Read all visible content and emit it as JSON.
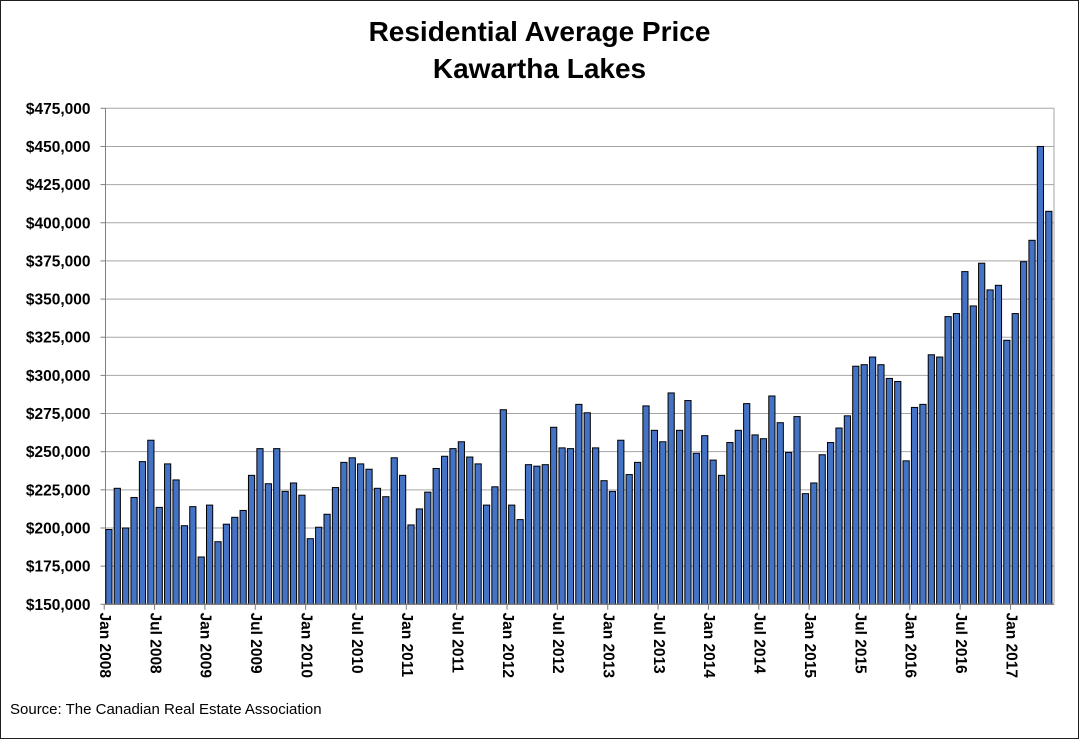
{
  "title": {
    "line1": "Residential Average Price",
    "line2": "Kawartha Lakes"
  },
  "source_note": "Source: The Canadian Real Estate Association",
  "chart_data": {
    "type": "bar",
    "title": "Residential Average Price - Kawartha Lakes",
    "xlabel": "",
    "ylabel": "",
    "unit": "CAD",
    "x_start": "Jan 2008",
    "x_end": "May 2017",
    "ylim": [
      150000,
      475000
    ],
    "ytick_step": 25000,
    "grid": true,
    "legend": "none",
    "bar_color": "#4472C4",
    "bar_edge_color": "#000000",
    "gridline_color": "#A6A6A6",
    "axis_color": "#808080",
    "y_tick_labels": [
      "$150,000",
      "$175,000",
      "$200,000",
      "$225,000",
      "$250,000",
      "$275,000",
      "$300,000",
      "$325,000",
      "$350,000",
      "$375,000",
      "$400,000",
      "$425,000",
      "$450,000",
      "$475,000"
    ],
    "x_tick_labels": [
      "Jan 2008",
      "Jul 2008",
      "Jan 2009",
      "Jul 2009",
      "Jan 2010",
      "Jul 2010",
      "Jan 2011",
      "Jul 2011",
      "Jan 2012",
      "Jul 2012",
      "Jan 2013",
      "Jul 2013",
      "Jan 2014",
      "Jul 2014",
      "Jan 2015",
      "Jul 2015",
      "Jan 2016",
      "Jul 2016",
      "Jan 2017"
    ],
    "series_by_year": [
      {
        "year": 2008,
        "values": [
          199000,
          226000,
          200000,
          220000,
          243500,
          257500,
          213500,
          242000,
          231500,
          201500,
          214000,
          181000
        ]
      },
      {
        "year": 2009,
        "values": [
          215000,
          191000,
          202500,
          207000,
          211500,
          234500,
          252000,
          229000,
          252000,
          224000,
          229500,
          221500
        ]
      },
      {
        "year": 2010,
        "values": [
          193000,
          200500,
          209000,
          226500,
          243000,
          246000,
          242000,
          238500,
          226000,
          220500,
          246000,
          234500
        ]
      },
      {
        "year": 2011,
        "values": [
          202000,
          212500,
          223500,
          239000,
          247000,
          252000,
          256500,
          246500,
          242000,
          215000,
          227000,
          277500
        ]
      },
      {
        "year": 2012,
        "values": [
          215000,
          205500,
          241500,
          240500,
          241500,
          266000,
          252500,
          252000,
          281000,
          275500,
          252500,
          231000
        ]
      },
      {
        "year": 2013,
        "values": [
          224000,
          257500,
          235000,
          243000,
          280000,
          264000,
          256500,
          288500,
          264000,
          283500,
          249000,
          260500
        ]
      },
      {
        "year": 2014,
        "values": [
          244500,
          234500,
          256000,
          264000,
          281500,
          261000,
          258500,
          286500,
          269000,
          249500,
          273000,
          222500
        ]
      },
      {
        "year": 2015,
        "values": [
          229500,
          248000,
          256000,
          265500,
          273500,
          306000,
          307000,
          312000,
          307000,
          298000,
          296000,
          244000
        ]
      },
      {
        "year": 2016,
        "values": [
          279000,
          281000,
          313500,
          312000,
          338500,
          340500,
          368000,
          345500,
          373500,
          356000,
          359000,
          323000
        ]
      },
      {
        "year": 2017,
        "values": [
          340500,
          374500,
          388500,
          450000,
          407500
        ]
      }
    ]
  }
}
